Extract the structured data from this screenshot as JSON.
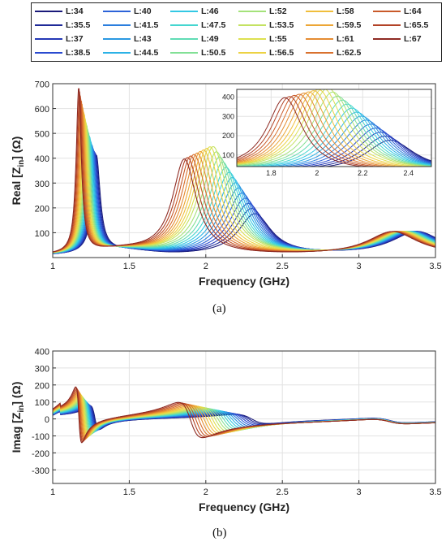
{
  "legend": {
    "placement": "top",
    "entries": [
      {
        "label": "L:34",
        "color": "#1a1a7a"
      },
      {
        "label": "L:35.5",
        "color": "#1f2a98"
      },
      {
        "label": "L:37",
        "color": "#2438b5"
      },
      {
        "label": "L:38.5",
        "color": "#2a4bd0"
      },
      {
        "label": "L:40",
        "color": "#2c63d8"
      },
      {
        "label": "L:41.5",
        "color": "#2b7ede"
      },
      {
        "label": "L:43",
        "color": "#2a98e2"
      },
      {
        "label": "L:44.5",
        "color": "#2cb2e6"
      },
      {
        "label": "L:46",
        "color": "#33c8e4"
      },
      {
        "label": "L:47.5",
        "color": "#45d6d0"
      },
      {
        "label": "L:49",
        "color": "#60dcb4"
      },
      {
        "label": "L:50.5",
        "color": "#82e096"
      },
      {
        "label": "L:52",
        "color": "#a4e27a"
      },
      {
        "label": "L:53.5",
        "color": "#c4e262"
      },
      {
        "label": "L:55",
        "color": "#dde050"
      },
      {
        "label": "L:56.5",
        "color": "#ecd244"
      },
      {
        "label": "L:58",
        "color": "#f0be3c"
      },
      {
        "label": "L:59.5",
        "color": "#eca636"
      },
      {
        "label": "L:61",
        "color": "#e58c32"
      },
      {
        "label": "L:62.5",
        "color": "#d9712e"
      },
      {
        "label": "L:64",
        "color": "#c95a2a"
      },
      {
        "label": "L:65.5",
        "color": "#b24226"
      },
      {
        "label": "L:67",
        "color": "#8e2a22"
      }
    ]
  },
  "captions": {
    "a": "(a)",
    "b": "(b)"
  },
  "chart_data": [
    {
      "id": "a",
      "type": "line",
      "xlabel": "Frequency (GHz)",
      "ylabel": "Real [Z",
      "ylabel_sub": "in",
      "ylabel_tail": "] (Ω)",
      "xlim": [
        1,
        3.5
      ],
      "ylim": [
        0,
        700
      ],
      "xticks": [
        1,
        1.5,
        2,
        2.5,
        3,
        3.5
      ],
      "xtick_labels": [
        "1",
        "1.5",
        "2",
        "2.5",
        "3",
        "3.5"
      ],
      "yticks": [
        100,
        200,
        300,
        400,
        500,
        600,
        700
      ],
      "ytick_labels": [
        "100",
        "200",
        "300",
        "400",
        "500",
        "600",
        "700"
      ],
      "grid": true,
      "series_model": {
        "peak1_freq_first": 1.285,
        "peak1_freq_last": 1.17,
        "peak1_height_first": 390,
        "peak1_height_last": 665,
        "peak2_freq_first": 2.32,
        "peak2_freq_last": 1.86,
        "peak2_height_first": 165,
        "peak2_height_last": 385,
        "peak2_height_mid": 440,
        "peak3_freq_first": 3.38,
        "peak3_freq_last": 3.22,
        "peak3_height": 95
      },
      "inset": {
        "xlim": [
          1.65,
          2.5
        ],
        "ylim": [
          40,
          440
        ],
        "xticks": [
          1.8,
          2,
          2.2,
          2.4
        ],
        "xtick_labels": [
          "1.8",
          "2",
          "2.2",
          "2.4"
        ],
        "yticks": [
          100,
          200,
          300,
          400
        ],
        "ytick_labels": [
          "100",
          "200",
          "300",
          "400"
        ]
      }
    },
    {
      "id": "b",
      "type": "line",
      "xlabel": "Frequency (GHz)",
      "ylabel": "Imag [Z",
      "ylabel_sub": "in",
      "ylabel_tail": "] (Ω)",
      "xlim": [
        1,
        3.5
      ],
      "ylim": [
        -380,
        400
      ],
      "xticks": [
        1,
        1.5,
        2,
        2.5,
        3,
        3.5
      ],
      "xtick_labels": [
        "1",
        "1.5",
        "2",
        "2.5",
        "3",
        "3.5"
      ],
      "yticks": [
        -300,
        -200,
        -100,
        0,
        100,
        200,
        300,
        400
      ],
      "ytick_labels": [
        "-300",
        "-200",
        "-100",
        "0",
        "100",
        "200",
        "300",
        "400"
      ],
      "grid": true,
      "series_model": {
        "res1_freq_first": 1.275,
        "res1_freq_last": 1.17,
        "res1_amp_first": 140,
        "res1_amp_last": 330,
        "res2_freq_first": 2.3,
        "res2_freq_last": 1.9,
        "res2_amp_first": 55,
        "res2_amp_last": 210,
        "res3_freq": 3.2
      }
    }
  ]
}
